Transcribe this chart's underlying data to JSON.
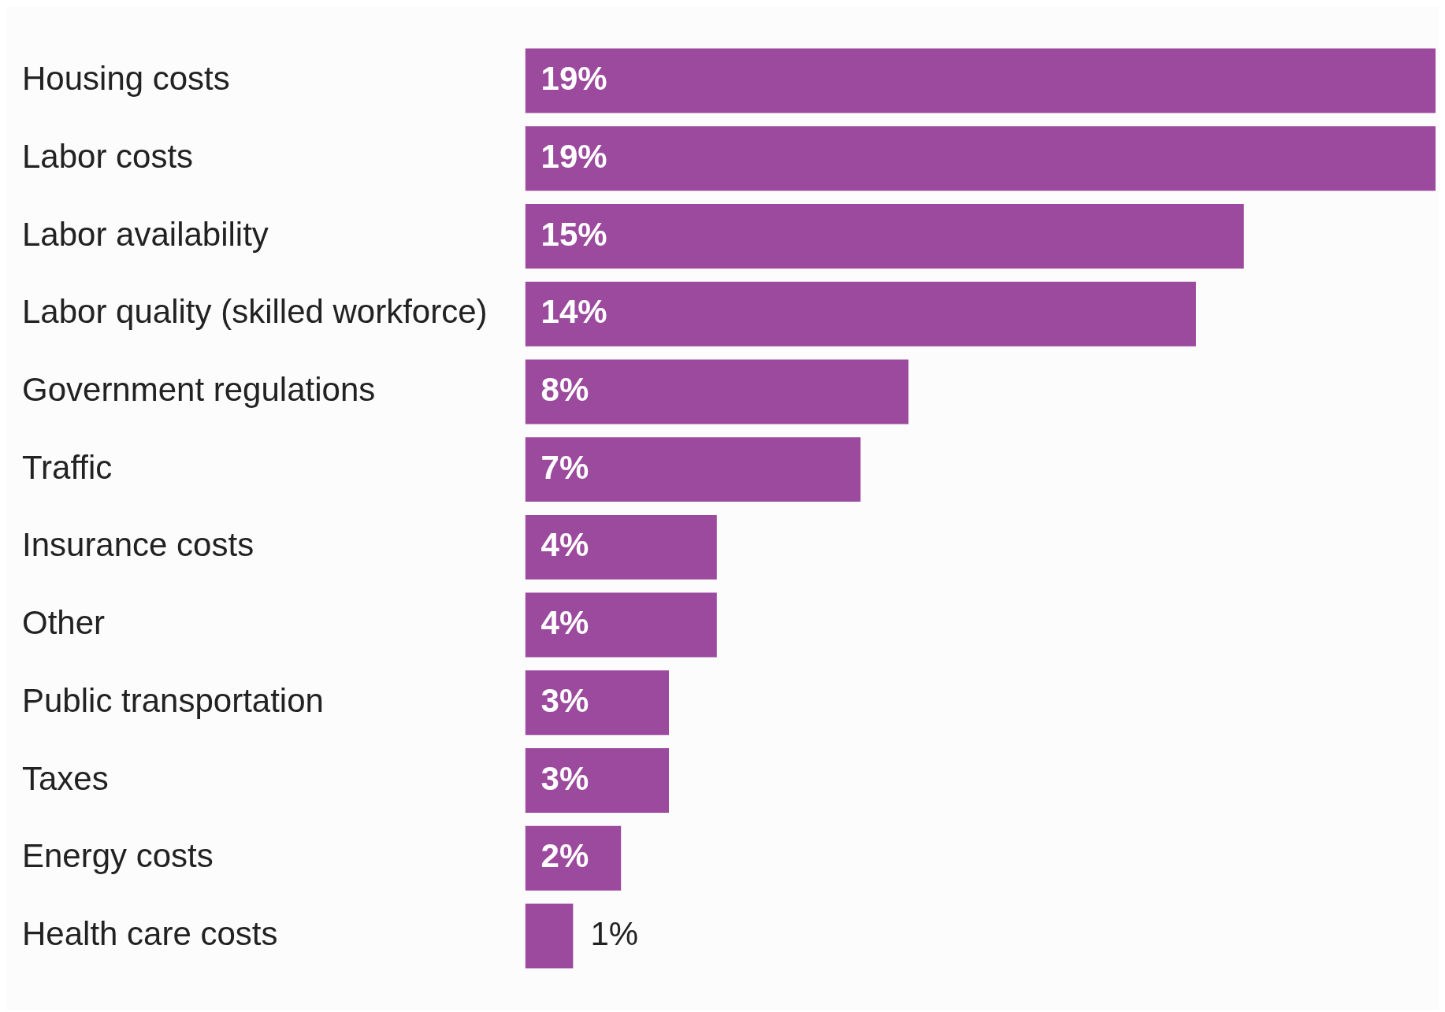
{
  "chart_data": {
    "type": "bar",
    "orientation": "horizontal",
    "categories": [
      "Housing costs",
      "Labor costs",
      "Labor availability",
      "Labor quality (skilled workforce)",
      "Government regulations",
      "Traffic",
      "Insurance costs",
      "Other",
      "Public transportation",
      "Taxes",
      "Energy costs",
      "Health care costs"
    ],
    "values": [
      19,
      19,
      15,
      14,
      8,
      7,
      4,
      4,
      3,
      3,
      2,
      1
    ],
    "value_labels": [
      "19%",
      "19%",
      "15%",
      "14%",
      "8%",
      "7%",
      "4%",
      "4%",
      "3%",
      "3%",
      "2%",
      "1%"
    ],
    "color": "#9c4a9e",
    "grid": false,
    "legend": false
  }
}
